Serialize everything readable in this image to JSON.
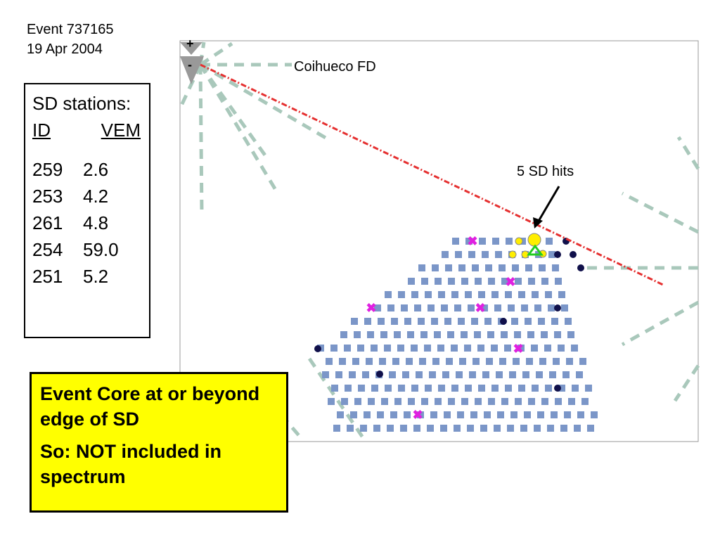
{
  "header": {
    "event": "Event 737165",
    "date": "19 Apr 2004"
  },
  "table": {
    "title": "SD stations:",
    "columns": [
      "ID",
      "VEM"
    ],
    "rows": [
      [
        "259",
        "2.6"
      ],
      [
        "253",
        "4.2"
      ],
      [
        "261",
        "4.8"
      ],
      [
        "254",
        "59.0"
      ],
      [
        "251",
        "5.2"
      ]
    ]
  },
  "map": {
    "fd_label": "Coihueco FD",
    "hits_label": "5 SD hits",
    "zoom_in": "+",
    "zoom_out": "-"
  },
  "note": {
    "line1": "Event Core at or beyond edge of SD",
    "line2": "So: NOT included in spectrum"
  }
}
